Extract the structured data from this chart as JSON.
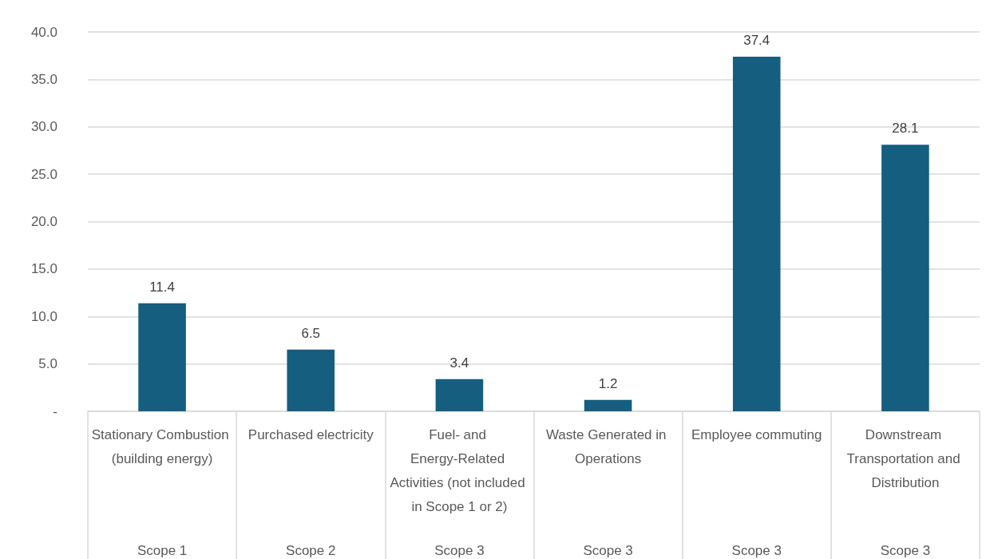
{
  "chart_data": {
    "type": "bar",
    "categories": [
      "Stationary Combustion (building energy)",
      "Purchased electricity",
      "Fuel- and Energy-Related Activities (not included in Scope 1 or 2)",
      "Waste Generated in Operations",
      "Employee commuting",
      "Downstream Transportation and Distribution"
    ],
    "values": [
      11.4,
      6.5,
      3.4,
      1.2,
      37.4,
      28.1
    ],
    "color": "#155e7f",
    "data_labels": true,
    "ylim": [
      0,
      40
    ],
    "yticks": [
      {
        "value": 0,
        "label": "-"
      },
      {
        "value": 5,
        "label": "5.0"
      },
      {
        "value": 10,
        "label": "10.0"
      },
      {
        "value": 15,
        "label": "15.0"
      },
      {
        "value": 20,
        "label": "20.0"
      },
      {
        "value": 25,
        "label": "25.0"
      },
      {
        "value": 30,
        "label": "30.0"
      },
      {
        "value": 35,
        "label": "35.0"
      },
      {
        "value": 40,
        "label": "40.0"
      }
    ],
    "grid": "y",
    "annotations": [
      "Scope 1",
      "Scope 2",
      "Scope 3",
      "Scope 3",
      "Scope 3",
      "Scope 3"
    ]
  }
}
